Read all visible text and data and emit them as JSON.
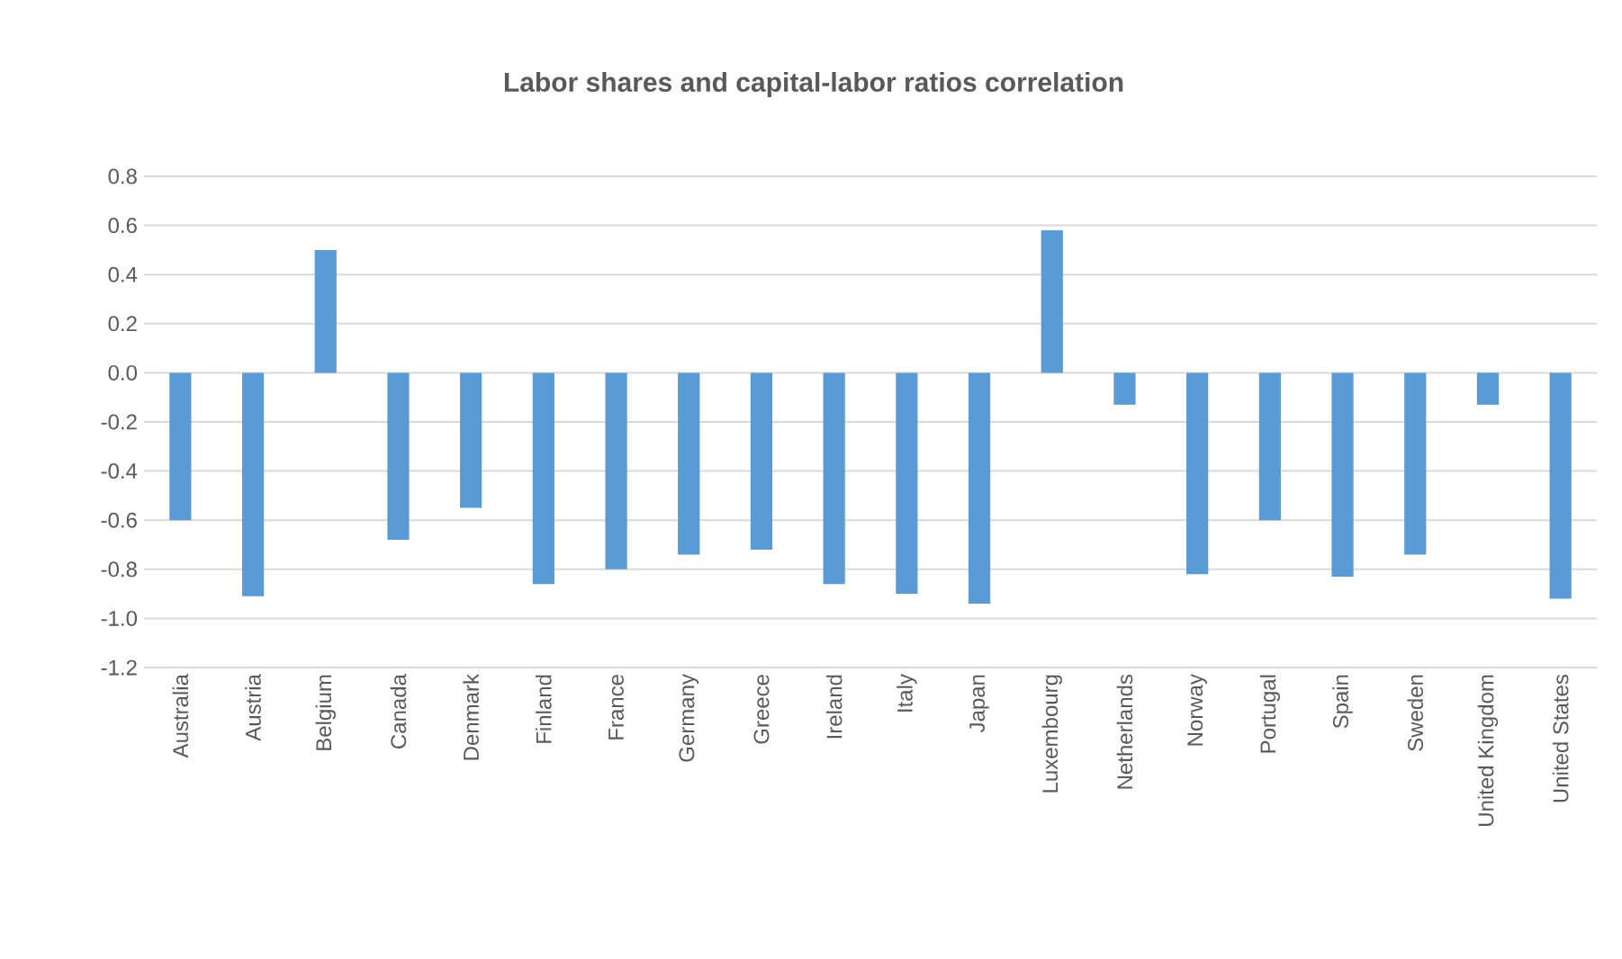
{
  "chart_data": {
    "type": "bar",
    "title": "Labor shares and capital-labor ratios correlation",
    "categories": [
      "Australia",
      "Austria",
      "Belgium",
      "Canada",
      "Denmark",
      "Finland",
      "France",
      "Germany",
      "Greece",
      "Ireland",
      "Italy",
      "Japan",
      "Luxembourg",
      "Netherlands",
      "Norway",
      "Portugal",
      "Spain",
      "Sweden",
      "United Kingdom",
      "United States"
    ],
    "values": [
      -0.6,
      -0.91,
      0.5,
      -0.68,
      -0.55,
      -0.86,
      -0.8,
      -0.74,
      -0.72,
      -0.86,
      -0.9,
      -0.94,
      0.58,
      -0.13,
      -0.82,
      -0.6,
      -0.83,
      -0.74,
      -0.13,
      -0.92
    ],
    "color": "#5b9bd5",
    "ylim": [
      -1.2,
      0.8
    ],
    "yticks": [
      {
        "value": -1.2,
        "label": "-1.2"
      },
      {
        "value": -1.0,
        "label": "-1.0"
      },
      {
        "value": -0.8,
        "label": "-0.8"
      },
      {
        "value": -0.6,
        "label": "-0.6"
      },
      {
        "value": -0.4,
        "label": "-0.4"
      },
      {
        "value": -0.2,
        "label": "-0.2"
      },
      {
        "value": 0,
        "label": "0.0"
      },
      {
        "value": 0.2,
        "label": "0.2"
      },
      {
        "value": 0.4,
        "label": "0.4"
      },
      {
        "value": 0.6,
        "label": "0.6"
      },
      {
        "value": 0.8,
        "label": "0.8"
      }
    ],
    "grid": "y"
  }
}
